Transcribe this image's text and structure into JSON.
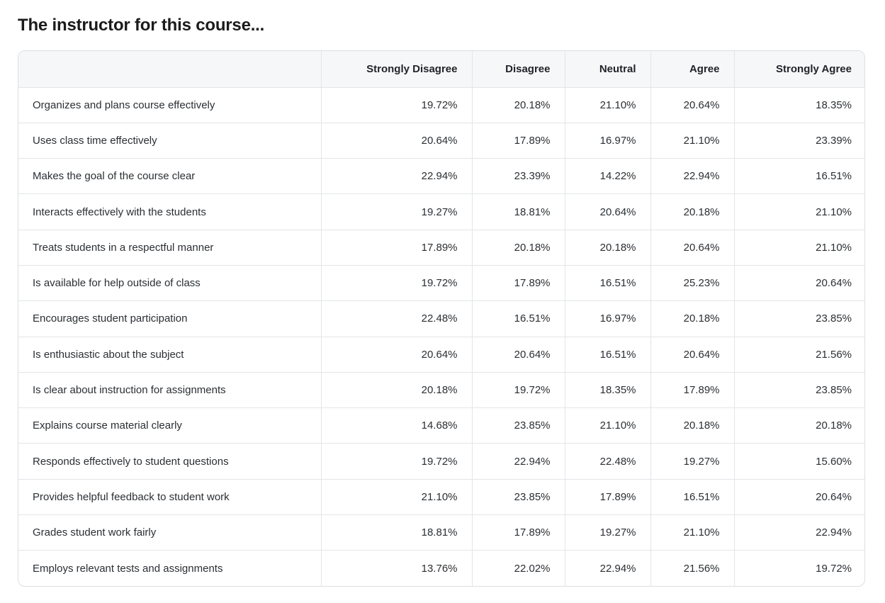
{
  "title": "The instructor for this course...",
  "table": {
    "headers": [
      "",
      "Strongly Disagree",
      "Disagree",
      "Neutral",
      "Agree",
      "Strongly Agree"
    ],
    "rows": [
      {
        "label": "Organizes and plans course effectively",
        "values": [
          "19.72%",
          "20.18%",
          "21.10%",
          "20.64%",
          "18.35%"
        ]
      },
      {
        "label": "Uses class time effectively",
        "values": [
          "20.64%",
          "17.89%",
          "16.97%",
          "21.10%",
          "23.39%"
        ]
      },
      {
        "label": "Makes the goal of the course clear",
        "values": [
          "22.94%",
          "23.39%",
          "14.22%",
          "22.94%",
          "16.51%"
        ]
      },
      {
        "label": "Interacts effectively with the students",
        "values": [
          "19.27%",
          "18.81%",
          "20.64%",
          "20.18%",
          "21.10%"
        ]
      },
      {
        "label": "Treats students in a respectful manner",
        "values": [
          "17.89%",
          "20.18%",
          "20.18%",
          "20.64%",
          "21.10%"
        ]
      },
      {
        "label": "Is available for help outside of class",
        "values": [
          "19.72%",
          "17.89%",
          "16.51%",
          "25.23%",
          "20.64%"
        ]
      },
      {
        "label": "Encourages student participation",
        "values": [
          "22.48%",
          "16.51%",
          "16.97%",
          "20.18%",
          "23.85%"
        ]
      },
      {
        "label": "Is enthusiastic about the subject",
        "values": [
          "20.64%",
          "20.64%",
          "16.51%",
          "20.64%",
          "21.56%"
        ]
      },
      {
        "label": "Is clear about instruction for assignments",
        "values": [
          "20.18%",
          "19.72%",
          "18.35%",
          "17.89%",
          "23.85%"
        ]
      },
      {
        "label": "Explains course material clearly",
        "values": [
          "14.68%",
          "23.85%",
          "21.10%",
          "20.18%",
          "20.18%"
        ]
      },
      {
        "label": "Responds effectively to student questions",
        "values": [
          "19.72%",
          "22.94%",
          "22.48%",
          "19.27%",
          "15.60%"
        ]
      },
      {
        "label": "Provides helpful feedback to student work",
        "values": [
          "21.10%",
          "23.85%",
          "17.89%",
          "16.51%",
          "20.64%"
        ]
      },
      {
        "label": "Grades student work fairly",
        "values": [
          "18.81%",
          "17.89%",
          "19.27%",
          "21.10%",
          "22.94%"
        ]
      },
      {
        "label": "Employs relevant tests and assignments",
        "values": [
          "13.76%",
          "22.02%",
          "22.94%",
          "21.56%",
          "19.72%"
        ]
      }
    ]
  }
}
